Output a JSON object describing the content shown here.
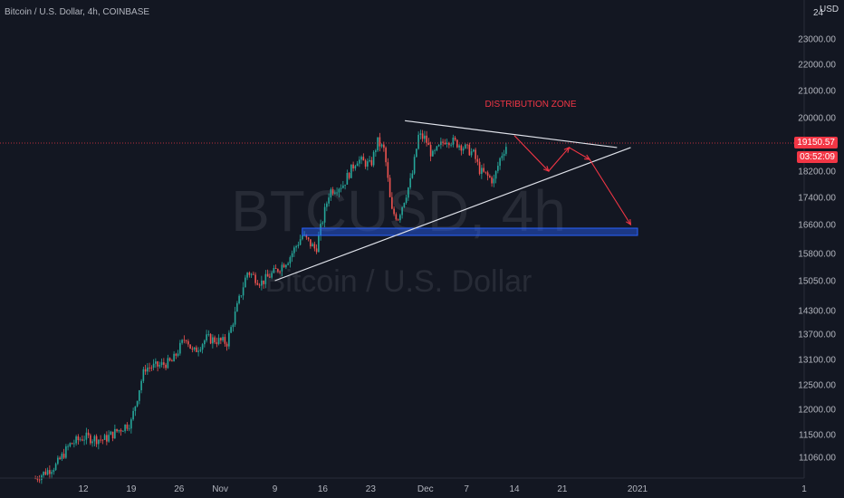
{
  "symbol_legend": "Bitcoin / U.S. Dollar, 4h, COINBASE",
  "watermark": {
    "ticker": "BTCUSD, 4h",
    "name": "Bitcoin / U.S. Dollar"
  },
  "currency_label": "USD",
  "top_price_label": "24",
  "colors": {
    "background": "#131722",
    "up": "#26a69a",
    "down": "#ef5350",
    "axis_text": "#b2b5be",
    "trendline": "#e0e3eb",
    "projection": "#f23645",
    "zone": "#2962ff",
    "price_line": "#f23645"
  },
  "price_tag": {
    "value": "19150.57",
    "countdown": "03:52:09"
  },
  "annotation": {
    "text": "DISTRIBUTION ZONE"
  },
  "chart_data": {
    "type": "candlestick",
    "title": "Bitcoin / U.S. Dollar, 4h, COINBASE",
    "y_ticks": [
      "23000.00",
      "22000.00",
      "21000.00",
      "20000.00",
      "19150.57",
      "18200.00",
      "17400.00",
      "16600.00",
      "15800.00",
      "15050.00",
      "14300.00",
      "13700.00",
      "13100.00",
      "12500.00",
      "12000.00",
      "11500.00",
      "11060.00"
    ],
    "x_ticks": [
      "12",
      "19",
      "26",
      "Nov",
      "9",
      "16",
      "23",
      "Dec",
      "7",
      "14",
      "21",
      "2021",
      "1"
    ],
    "price_series_close": [
      {
        "date": "2020-10-05",
        "close": 10650
      },
      {
        "date": "2020-10-08",
        "close": 10900
      },
      {
        "date": "2020-10-10",
        "close": 11300
      },
      {
        "date": "2020-10-12",
        "close": 11450
      },
      {
        "date": "2020-10-15",
        "close": 11400
      },
      {
        "date": "2020-10-19",
        "close": 11750
      },
      {
        "date": "2020-10-21",
        "close": 12900
      },
      {
        "date": "2020-10-23",
        "close": 12950
      },
      {
        "date": "2020-10-25",
        "close": 13050
      },
      {
        "date": "2020-10-27",
        "close": 13650
      },
      {
        "date": "2020-10-28",
        "close": 13250
      },
      {
        "date": "2020-10-30",
        "close": 13600
      },
      {
        "date": "2020-11-02",
        "close": 13500
      },
      {
        "date": "2020-11-05",
        "close": 15300
      },
      {
        "date": "2020-11-07",
        "close": 15000
      },
      {
        "date": "2020-11-09",
        "close": 15300
      },
      {
        "date": "2020-11-11",
        "close": 15650
      },
      {
        "date": "2020-11-13",
        "close": 16300
      },
      {
        "date": "2020-11-15",
        "close": 15900
      },
      {
        "date": "2020-11-17",
        "close": 17600
      },
      {
        "date": "2020-11-19",
        "close": 17800
      },
      {
        "date": "2020-11-21",
        "close": 18600
      },
      {
        "date": "2020-11-23",
        "close": 18400
      },
      {
        "date": "2020-11-24",
        "close": 19200
      },
      {
        "date": "2020-11-25",
        "close": 18900
      },
      {
        "date": "2020-11-26",
        "close": 17000
      },
      {
        "date": "2020-11-27",
        "close": 16800
      },
      {
        "date": "2020-11-29",
        "close": 18000
      },
      {
        "date": "2020-11-30",
        "close": 19400
      },
      {
        "date": "2020-12-01",
        "close": 19300
      },
      {
        "date": "2020-12-02",
        "close": 18700
      },
      {
        "date": "2020-12-04",
        "close": 19300
      },
      {
        "date": "2020-12-06",
        "close": 19100
      },
      {
        "date": "2020-12-08",
        "close": 18800
      },
      {
        "date": "2020-12-09",
        "close": 18200
      },
      {
        "date": "2020-12-11",
        "close": 17900
      },
      {
        "date": "2020-12-12",
        "close": 18700
      },
      {
        "date": "2020-12-13",
        "close": 19150
      }
    ],
    "drawings": {
      "resistance_line": [
        {
          "date": "2020-11-28",
          "price": 19900
        },
        {
          "date": "2020-12-29",
          "price": 19000
        }
      ],
      "support_line": [
        {
          "date": "2020-11-09",
          "price": 15050
        },
        {
          "date": "2020-12-31",
          "price": 19000
        }
      ],
      "demand_zone": {
        "from_date": "2020-11-13",
        "to_date": "2021-01-01",
        "price_top": 16500,
        "price_bottom": 16300
      },
      "projection_path": [
        {
          "date": "2020-12-14",
          "price": 19400
        },
        {
          "date": "2020-12-19",
          "price": 18200
        },
        {
          "date": "2020-12-22",
          "price": 19000
        },
        {
          "date": "2020-12-25",
          "price": 18600
        },
        {
          "date": "2020-12-31",
          "price": 16600
        }
      ]
    }
  }
}
